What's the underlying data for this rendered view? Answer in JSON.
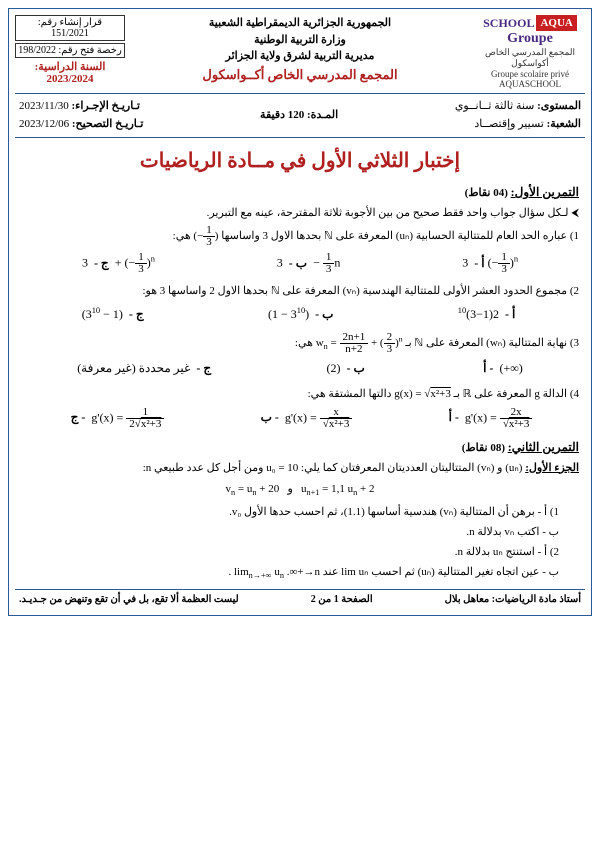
{
  "header": {
    "logo": {
      "aqua": "AQUA",
      "school": "SCHOOL",
      "groupe": "Groupe",
      "ar": "المجمع المدرسي الخاص أكواسكول",
      "fr": "Groupe scolaire privé AQUASCHOOL"
    },
    "center": {
      "l1": "الجمهورية الجزائرية الديمقراطية الشعبية",
      "l2": "وزارة التربية الوطنية",
      "l3": "مديرية التربية لشرق ولاية الجزائر",
      "l4": "المجمع المدرسي الخاص أكــواسكول"
    },
    "right": {
      "b1": "قرار إنشاء رقم: 151/2021",
      "b2": "رخصة فتح رقم: 198/2022",
      "year_lbl": "السنة الدراسية:",
      "year": "2023/2024"
    }
  },
  "info": {
    "level_lbl": "المستوى:",
    "level": "سنة ثالثة ثــانــوي",
    "branch_lbl": "الشعبة:",
    "branch": "تسيير وإقتصــاد",
    "duration_lbl": "المـدة:",
    "duration": "120 دقيقة",
    "date1_lbl": "تـاريـخ الإجـراء:",
    "date1": "2023/11/30",
    "date2_lbl": "تـاريـخ التصحيح:",
    "date2": "2023/12/06"
  },
  "title": "إختبار الثلاثي الأول في مــادة الرياضيات",
  "ex1": {
    "head": "التمرين الأول:",
    "pts": "(04 نقاط)",
    "intro": "لـكل سؤال جواب واحد فقط صحيح من بين الأجوبة ثلاثة المقترحة، عينه مع التبرير.",
    "q1": "عباره الحد العام للمتتالية الحسابية (uₙ) المعرفة على ℕ بحدها الاول 3 واساسها",
    "q1_base": "(−1/3)",
    "q1_end": "هي:",
    "q1a": "3(−1/3)ⁿ",
    "q1b": "3 − (1/3)n",
    "q1c": "3 + (−1/3)ⁿ",
    "q2": "مجموع الحدود العشر الأولى للمتتالية الهندسية (vₙ) المعرفة على ℕ بحدها الاول 2 واساسها 3 هو:",
    "q2a": "2(1−3)¹⁰",
    "q2b": "(3¹⁰ − 1)",
    "q2c": "(1 − 3¹⁰)",
    "q3": "نهاية المتتالية (wₙ) المعرفة على ℕ بـ",
    "q3_end": "هي:",
    "q3a": "(+∞)",
    "q3b": "(2)",
    "q3c": "غير محددة (غير معرفة)",
    "q4": "الدالة g المعرفة على ℝ بـ",
    "q4_end": "دالتها المشتقة هي:",
    "lbl_a": "أ -",
    "lbl_b": "ب -",
    "lbl_c": "ج -"
  },
  "ex2": {
    "head": "التمرين الثاني:",
    "pts": "(08 نقاط)",
    "part1": "الجزء الأول:",
    "p1_text": "(uₙ) و (vₙ) المتتاليتان العدديتان المعرفتان كما يلي: u₀ = 10 ومن أجل كل عدد طبيعي n:",
    "rec": "uₙ₊₁ = 1.1 uₙ + 2   و   vₙ = uₙ + 20",
    "i1a": "1) أ - برهن أن المتتالية (vₙ) هندسية أساسها (1.1)، ثم احسب حدها الأول v₀.",
    "i1b": "ب - اكتب vₙ بدلالة n.",
    "i2a": "2) أ - استنتج uₙ بدلالة n.",
    "i2b": "ب - عين اتجاه تغير المتتالية (uₙ) ثم احسب lim uₙ عند n→+∞."
  },
  "footer": {
    "teacher": "أستاذ مادة الرياضيات: معاهل بلال",
    "page": "الصفحة 1 من 2",
    "quote": "ليست العظمة ألا تقع، بل في أن تقع وتنهض من جـديـد."
  },
  "colors": {
    "border": "#2a5a9a",
    "accent": "#b02020"
  }
}
